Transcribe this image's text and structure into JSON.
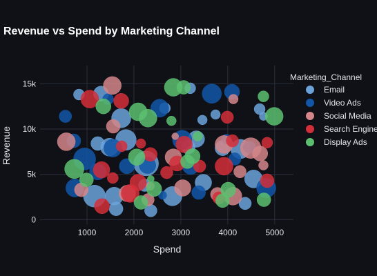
{
  "chart_data": {
    "type": "scatter",
    "title": "Revenue vs Spend by Marketing Channel",
    "xlabel": "Spend",
    "ylabel": "Revenue",
    "xlim": [
      0,
      5400
    ],
    "ylim": [
      -500,
      17000
    ],
    "x_ticks": [
      1000,
      2000,
      3000,
      4000,
      5000
    ],
    "x_tick_labels": [
      "1000",
      "2000",
      "3000",
      "4000",
      "5000"
    ],
    "y_ticks": [
      0,
      5000,
      10000,
      15000
    ],
    "y_tick_labels": [
      "0",
      "5k",
      "10k",
      "15k"
    ],
    "grid": true,
    "legend_title": "Marketing_Channel",
    "legend_position": "right",
    "series": [
      {
        "name": "Email",
        "color": "#6ba3d9",
        "points": [
          {
            "x": 830,
            "y": 13800,
            "size": 8
          },
          {
            "x": 1300,
            "y": 13900,
            "size": 11
          },
          {
            "x": 1730,
            "y": 11200,
            "size": 14
          },
          {
            "x": 1230,
            "y": 8400,
            "size": 10
          },
          {
            "x": 1480,
            "y": 8000,
            "size": 13
          },
          {
            "x": 1830,
            "y": 8800,
            "size": 15
          },
          {
            "x": 2260,
            "y": 6200,
            "size": 18
          },
          {
            "x": 2230,
            "y": 3800,
            "size": 9
          },
          {
            "x": 1580,
            "y": 2600,
            "size": 13
          },
          {
            "x": 1620,
            "y": 1200,
            "size": 10
          },
          {
            "x": 1160,
            "y": 2600,
            "size": 16
          },
          {
            "x": 2360,
            "y": 1000,
            "size": 9
          },
          {
            "x": 2820,
            "y": 2600,
            "size": 14
          },
          {
            "x": 3200,
            "y": 14500,
            "size": 8
          },
          {
            "x": 3460,
            "y": 11000,
            "size": 7
          },
          {
            "x": 3330,
            "y": 8900,
            "size": 12
          },
          {
            "x": 3480,
            "y": 4100,
            "size": 12
          },
          {
            "x": 3740,
            "y": 11600,
            "size": 7
          },
          {
            "x": 4270,
            "y": 7800,
            "size": 14
          },
          {
            "x": 4370,
            "y": 1800,
            "size": 9
          },
          {
            "x": 4550,
            "y": 4500,
            "size": 13
          },
          {
            "x": 4760,
            "y": 11400,
            "size": 6
          },
          {
            "x": 4680,
            "y": 12200,
            "size": 8
          },
          {
            "x": 3890,
            "y": 7900,
            "size": 11
          },
          {
            "x": 2660,
            "y": 12300,
            "size": 8
          },
          {
            "x": 3160,
            "y": 8000,
            "size": 10
          }
        ]
      },
      {
        "name": "Video Ads",
        "color": "#1256a8",
        "points": [
          {
            "x": 540,
            "y": 11400,
            "size": 9
          },
          {
            "x": 720,
            "y": 8700,
            "size": 10
          },
          {
            "x": 950,
            "y": 6700,
            "size": 16
          },
          {
            "x": 740,
            "y": 3500,
            "size": 13
          },
          {
            "x": 1450,
            "y": 13300,
            "size": 8
          },
          {
            "x": 1550,
            "y": 7900,
            "size": 13
          },
          {
            "x": 1230,
            "y": 5300,
            "size": 12
          },
          {
            "x": 1850,
            "y": 5900,
            "size": 11
          },
          {
            "x": 2290,
            "y": 6000,
            "size": 12
          },
          {
            "x": 2550,
            "y": 12300,
            "size": 13
          },
          {
            "x": 3030,
            "y": 8800,
            "size": 14
          },
          {
            "x": 3210,
            "y": 5900,
            "size": 12
          },
          {
            "x": 3380,
            "y": 3000,
            "size": 10
          },
          {
            "x": 3660,
            "y": 13900,
            "size": 14
          },
          {
            "x": 3970,
            "y": 8900,
            "size": 7
          },
          {
            "x": 4090,
            "y": 14100,
            "size": 11
          },
          {
            "x": 4150,
            "y": 6700,
            "size": 9
          },
          {
            "x": 4460,
            "y": 8000,
            "size": 9
          },
          {
            "x": 4820,
            "y": 3500,
            "size": 14
          },
          {
            "x": 2610,
            "y": 2700,
            "size": 6
          }
        ]
      },
      {
        "name": "Social Media",
        "color": "#d4868a",
        "points": [
          {
            "x": 560,
            "y": 8600,
            "size": 13
          },
          {
            "x": 880,
            "y": 3300,
            "size": 10
          },
          {
            "x": 1540,
            "y": 14800,
            "size": 13
          },
          {
            "x": 1560,
            "y": 10300,
            "size": 10
          },
          {
            "x": 1860,
            "y": 2900,
            "size": 12
          },
          {
            "x": 2300,
            "y": 2200,
            "size": 9
          },
          {
            "x": 2880,
            "y": 9200,
            "size": 5
          },
          {
            "x": 2840,
            "y": 6900,
            "size": 12
          },
          {
            "x": 3040,
            "y": 3500,
            "size": 12
          },
          {
            "x": 3780,
            "y": 2800,
            "size": 10
          },
          {
            "x": 3920,
            "y": 8300,
            "size": 13
          },
          {
            "x": 4110,
            "y": 2600,
            "size": 13
          },
          {
            "x": 4120,
            "y": 13300,
            "size": 7
          },
          {
            "x": 4260,
            "y": 5300,
            "size": 9
          },
          {
            "x": 4490,
            "y": 7900,
            "size": 15
          },
          {
            "x": 4690,
            "y": 7300,
            "size": 11
          },
          {
            "x": 4760,
            "y": 6000,
            "size": 7
          },
          {
            "x": 2350,
            "y": 3700,
            "size": 6
          }
        ]
      },
      {
        "name": "Search Engine",
        "color": "#d32f3a",
        "points": [
          {
            "x": 1060,
            "y": 13300,
            "size": 13
          },
          {
            "x": 1730,
            "y": 13100,
            "size": 11
          },
          {
            "x": 1740,
            "y": 8100,
            "size": 8
          },
          {
            "x": 1310,
            "y": 5500,
            "size": 12
          },
          {
            "x": 1320,
            "y": 1500,
            "size": 11
          },
          {
            "x": 1550,
            "y": 4600,
            "size": 8
          },
          {
            "x": 1920,
            "y": 2900,
            "size": 13
          },
          {
            "x": 2090,
            "y": 4100,
            "size": 12
          },
          {
            "x": 2150,
            "y": 8400,
            "size": 7
          },
          {
            "x": 2350,
            "y": 7200,
            "size": 10
          },
          {
            "x": 2700,
            "y": 5200,
            "size": 9
          },
          {
            "x": 2920,
            "y": 6200,
            "size": 11
          },
          {
            "x": 3070,
            "y": 8300,
            "size": 12
          },
          {
            "x": 3400,
            "y": 5900,
            "size": 9
          },
          {
            "x": 3810,
            "y": 2400,
            "size": 9
          },
          {
            "x": 3920,
            "y": 5900,
            "size": 13
          },
          {
            "x": 3990,
            "y": 11300,
            "size": 9
          },
          {
            "x": 4100,
            "y": 8700,
            "size": 9
          },
          {
            "x": 4840,
            "y": 4300,
            "size": 10
          },
          {
            "x": 4840,
            "y": 8500,
            "size": 8
          }
        ]
      },
      {
        "name": "Display Ads",
        "color": "#5cbf70",
        "points": [
          {
            "x": 730,
            "y": 5600,
            "size": 14
          },
          {
            "x": 990,
            "y": 4400,
            "size": 10
          },
          {
            "x": 1350,
            "y": 12500,
            "size": 11
          },
          {
            "x": 2090,
            "y": 11900,
            "size": 13
          },
          {
            "x": 2300,
            "y": 11200,
            "size": 13
          },
          {
            "x": 2840,
            "y": 14600,
            "size": 13
          },
          {
            "x": 2800,
            "y": 10900,
            "size": 7
          },
          {
            "x": 3060,
            "y": 14600,
            "size": 10
          },
          {
            "x": 3140,
            "y": 6400,
            "size": 10
          },
          {
            "x": 3250,
            "y": 7000,
            "size": 11
          },
          {
            "x": 3360,
            "y": 9200,
            "size": 7
          },
          {
            "x": 2060,
            "y": 6900,
            "size": 12
          },
          {
            "x": 2150,
            "y": 1900,
            "size": 10
          },
          {
            "x": 2430,
            "y": 3400,
            "size": 11
          },
          {
            "x": 2360,
            "y": 4500,
            "size": 5
          },
          {
            "x": 3890,
            "y": 2100,
            "size": 10
          },
          {
            "x": 4010,
            "y": 3300,
            "size": 11
          },
          {
            "x": 4760,
            "y": 13600,
            "size": 8
          },
          {
            "x": 4770,
            "y": 2200,
            "size": 10
          },
          {
            "x": 4990,
            "y": 11400,
            "size": 13
          }
        ]
      }
    ]
  }
}
